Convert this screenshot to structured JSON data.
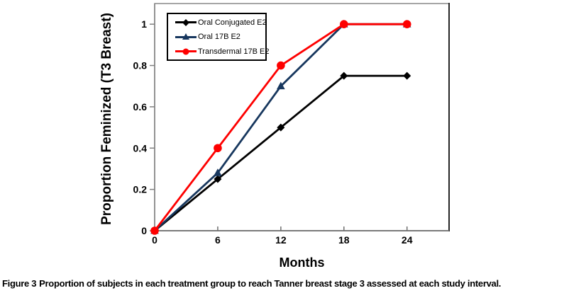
{
  "figure": {
    "caption_label": "Figure 3",
    "caption_text": "Proportion of subjects in each treatment group to reach Tanner breast stage 3 assessed at each study interval."
  },
  "chart_data": {
    "type": "line",
    "title": "",
    "xlabel": "Months",
    "ylabel": "Proportion Feminized (T3 Breast)",
    "x": [
      0,
      6,
      12,
      18,
      24
    ],
    "x_tick_labels": [
      "0",
      "6",
      "12",
      "18",
      "24"
    ],
    "y_ticks": [
      0,
      0.2,
      0.4,
      0.6,
      0.8,
      1
    ],
    "y_tick_labels": [
      "0",
      "0.2",
      "0.4",
      "0.6",
      "0.8",
      "1"
    ],
    "xlim": [
      0,
      28
    ],
    "ylim": [
      0,
      1.1
    ],
    "grid": false,
    "legend_position": "inside-top-left",
    "series": [
      {
        "name": "Oral Conjugated E2",
        "color": "#000000",
        "marker": "diamond",
        "values": [
          0,
          0.25,
          0.5,
          0.75,
          0.75
        ]
      },
      {
        "name": "Oral 17B E2",
        "color": "#17375E",
        "marker": "triangle",
        "values": [
          0,
          0.28,
          0.7,
          1.0,
          1.0
        ]
      },
      {
        "name": "Transdermal 17B E2",
        "color": "#FE0000",
        "marker": "circle",
        "values": [
          0,
          0.4,
          0.8,
          1.0,
          1.0
        ]
      }
    ]
  },
  "colors": {
    "plot_border": "#808080",
    "axis_line": "#6e6e6e",
    "right_border": "#262626",
    "tick": "#808080",
    "text": "#000000"
  }
}
